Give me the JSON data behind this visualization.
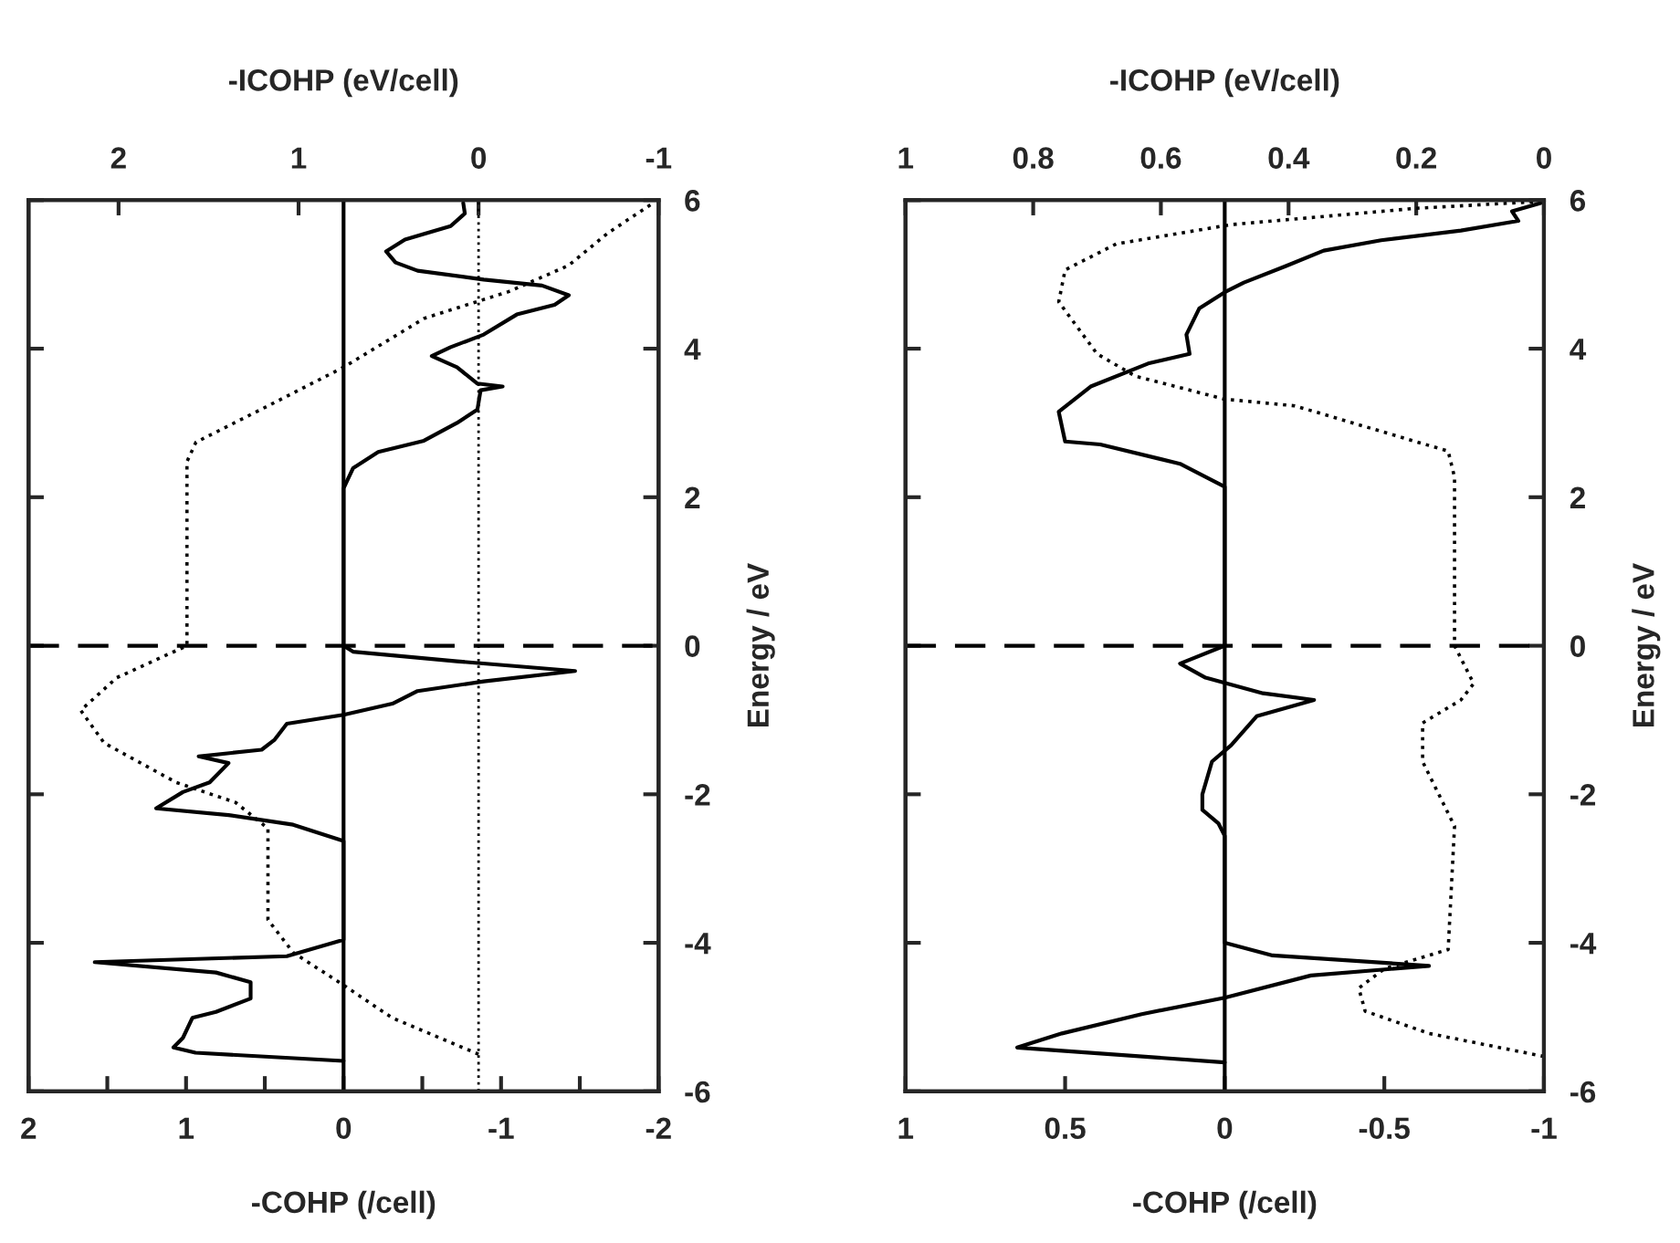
{
  "chart_data": [
    {
      "type": "line",
      "xlabel": "-COHP (/cell)",
      "x2label": "-ICOHP (eV/cell)",
      "ylabel": "Energy / eV",
      "xlim": [
        2,
        -2
      ],
      "xticks": [
        2,
        {
          "value": 1.5,
          "label": null
        },
        1,
        {
          "value": 0.5,
          "label": null
        },
        0,
        {
          "value": -0.5,
          "label": null
        },
        -1,
        {
          "value": -1.5,
          "label": null
        },
        -2
      ],
      "x2lim": [
        2.5,
        -1
      ],
      "x2ticks": [
        2,
        1,
        0,
        -1
      ],
      "ylim": [
        -6,
        6
      ],
      "yticks": [
        -6,
        -4,
        -2,
        0,
        2,
        4,
        6
      ],
      "ref_lines": [
        {
          "axis": "y",
          "value": 0,
          "line_style": "dashed",
          "color": "#000000"
        },
        {
          "axis": "x",
          "value": 0,
          "line_style": "solid",
          "color": "#000000"
        },
        {
          "axis": "x2",
          "value": 0,
          "line_style": "dotted",
          "color": "#000000"
        }
      ],
      "series": [
        {
          "color": "#000000",
          "line_style": "solid",
          "x": [
            -0.76,
            -0.77,
            -0.68,
            -0.39,
            -0.27,
            -0.33,
            -0.47,
            -0.89,
            -1.26,
            -1.43,
            -1.34,
            -1.1,
            -0.89,
            -0.68,
            -0.56,
            -0.72,
            -0.85,
            -1.01,
            -0.87,
            -0.85,
            -0.72,
            -0.51,
            -0.22,
            -0.06,
            0.0,
            0.0,
            -0.06,
            -0.72,
            -1.47,
            -0.89,
            -0.47,
            -0.31,
            0.0,
            0.36,
            0.44,
            0.52,
            0.92,
            0.73,
            0.85,
            1.02,
            1.19,
            0.73,
            0.32,
            0.0,
            0.0,
            0.36,
            1.58,
            0.81,
            0.59,
            0.59,
            0.81,
            0.96,
            1.02,
            1.08,
            0.94,
            0.0
          ],
          "values": [
            5.96,
            5.82,
            5.65,
            5.47,
            5.31,
            5.16,
            5.05,
            4.93,
            4.85,
            4.72,
            4.59,
            4.46,
            4.19,
            4.02,
            3.9,
            3.75,
            3.53,
            3.49,
            3.44,
            3.18,
            3.0,
            2.76,
            2.61,
            2.39,
            2.12,
            0.0,
            -0.08,
            -0.21,
            -0.34,
            -0.48,
            -0.61,
            -0.78,
            -0.93,
            -1.05,
            -1.27,
            -1.4,
            -1.49,
            -1.58,
            -1.84,
            -1.97,
            -2.19,
            -2.28,
            -2.41,
            -2.63,
            -3.96,
            -4.18,
            -4.26,
            -4.4,
            -4.53,
            -4.75,
            -4.93,
            -5.01,
            -5.28,
            -5.41,
            -5.48,
            -5.59
          ]
        },
        {
          "color": "#000000",
          "line_style": "dotted",
          "axis": "x2",
          "x": [
            0.0,
            0.48,
            0.75,
            1.03,
            1.17,
            1.17,
            1.35,
            1.68,
            2.08,
            2.21,
            2.01,
            1.62,
            1.62,
            1.57,
            1.21,
            0.75,
            0.3,
            -0.17,
            -0.5,
            -0.72,
            -0.97
          ],
          "values": [
            -5.5,
            -5.01,
            -4.57,
            -4.13,
            -3.69,
            -2.46,
            -2.11,
            -1.84,
            -1.31,
            -0.87,
            -0.43,
            0.0,
            2.48,
            2.74,
            3.18,
            3.75,
            4.41,
            4.77,
            5.12,
            5.56,
            5.96
          ]
        }
      ]
    },
    {
      "type": "line",
      "xlabel": "-COHP (/cell)",
      "x2label": "-ICOHP (eV/cell)",
      "ylabel": "Energy / eV",
      "xlim": [
        1,
        -1
      ],
      "xticks": [
        1,
        0.5,
        0,
        -0.5,
        -1
      ],
      "x2lim": [
        1,
        0
      ],
      "x2ticks": [
        1,
        0.8,
        0.6,
        0.4,
        0.2,
        0
      ],
      "ylim": [
        -6,
        6
      ],
      "yticks": [
        -6,
        -4,
        -2,
        0,
        2,
        4,
        6
      ],
      "ref_lines": [
        {
          "axis": "y",
          "value": 0,
          "line_style": "dashed",
          "color": "#000000"
        },
        {
          "axis": "x",
          "value": 0,
          "line_style": "solid",
          "color": "#000000"
        }
      ],
      "series": [
        {
          "color": "#000000",
          "line_style": "solid",
          "x": [
            -0.99,
            -0.9,
            -0.92,
            -0.74,
            -0.49,
            -0.31,
            -0.19,
            -0.06,
            0.0,
            0.08,
            0.12,
            0.11,
            0.24,
            0.42,
            0.52,
            0.5,
            0.39,
            0.14,
            0.0,
            0.0,
            0.14,
            0.06,
            -0.12,
            -0.28,
            -0.1,
            -0.02,
            0.04,
            0.07,
            0.07,
            0.02,
            0.0,
            0.0,
            -0.15,
            -0.64,
            -0.27,
            0.0,
            0.26,
            0.51,
            0.65,
            0.0
          ],
          "values": [
            5.96,
            5.85,
            5.72,
            5.59,
            5.46,
            5.32,
            5.11,
            4.89,
            4.76,
            4.54,
            4.19,
            3.93,
            3.8,
            3.49,
            3.15,
            2.75,
            2.71,
            2.45,
            2.14,
            0.0,
            -0.24,
            -0.43,
            -0.64,
            -0.73,
            -0.95,
            -1.34,
            -1.56,
            -2.0,
            -2.21,
            -2.39,
            -2.56,
            -4.0,
            -4.17,
            -4.31,
            -4.44,
            -4.74,
            -4.96,
            -5.22,
            -5.41,
            -5.61
          ]
        },
        {
          "color": "#000000",
          "line_style": "dotted",
          "axis": "x2",
          "x": [
            0.0,
            0.18,
            0.28,
            0.29,
            0.25,
            0.15,
            0.14,
            0.19,
            0.19,
            0.13,
            0.11,
            0.14,
            0.14,
            0.15,
            0.39,
            0.5,
            0.64,
            0.7,
            0.76,
            0.75,
            0.67,
            0.49,
            0.2,
            0.01
          ],
          "values": [
            -5.53,
            -5.22,
            -4.92,
            -4.61,
            -4.35,
            -4.09,
            -2.43,
            -1.56,
            -1.04,
            -0.73,
            -0.51,
            0.0,
            2.27,
            2.62,
            3.23,
            3.32,
            3.63,
            3.93,
            4.63,
            5.06,
            5.41,
            5.67,
            5.89,
            5.98
          ]
        }
      ]
    }
  ]
}
